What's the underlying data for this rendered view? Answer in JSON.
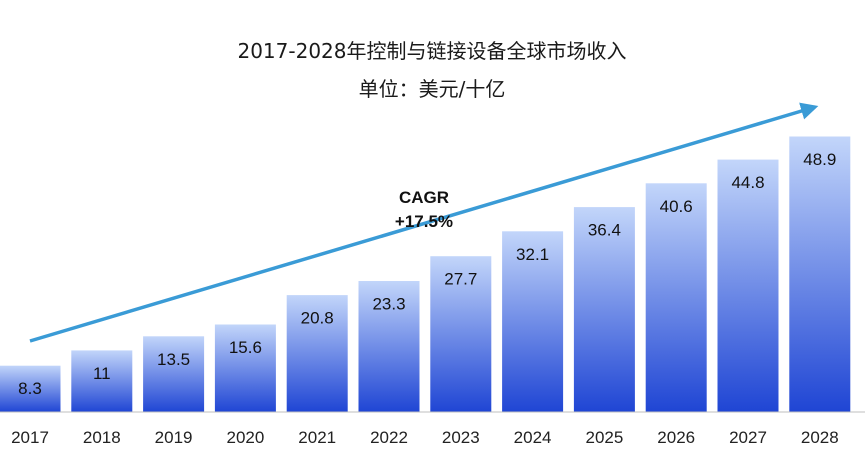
{
  "chart_data": {
    "type": "bar",
    "title": "2017-2028年控制与链接设备全球市场收入",
    "subtitle": "单位：美元/十亿",
    "categories": [
      "2017",
      "2018",
      "2019",
      "2020",
      "2021",
      "2022",
      "2023",
      "2024",
      "2025",
      "2026",
      "2027",
      "2028"
    ],
    "values": [
      8.3,
      11,
      13.5,
      15.6,
      20.8,
      23.3,
      27.7,
      32.1,
      36.4,
      40.6,
      44.8,
      48.9
    ],
    "value_labels": [
      "8.3",
      "11",
      "13.5",
      "15.6",
      "20.8",
      "23.3",
      "27.7",
      "32.1",
      "36.4",
      "40.6",
      "44.8",
      "48.9"
    ],
    "xlabel": "",
    "ylabel": "",
    "ylim": [
      0,
      48.9
    ],
    "grid": false,
    "legend": "none",
    "annotation": {
      "line1": "CAGR",
      "line2": "+17.5%"
    },
    "colors": {
      "bar_top": "#c3d6fa",
      "bar_bottom": "#1f45d4",
      "bar_stroke": "#ffffff",
      "trend_arrow": "#3a9bd6",
      "baseline": "#bfbfbf"
    }
  }
}
